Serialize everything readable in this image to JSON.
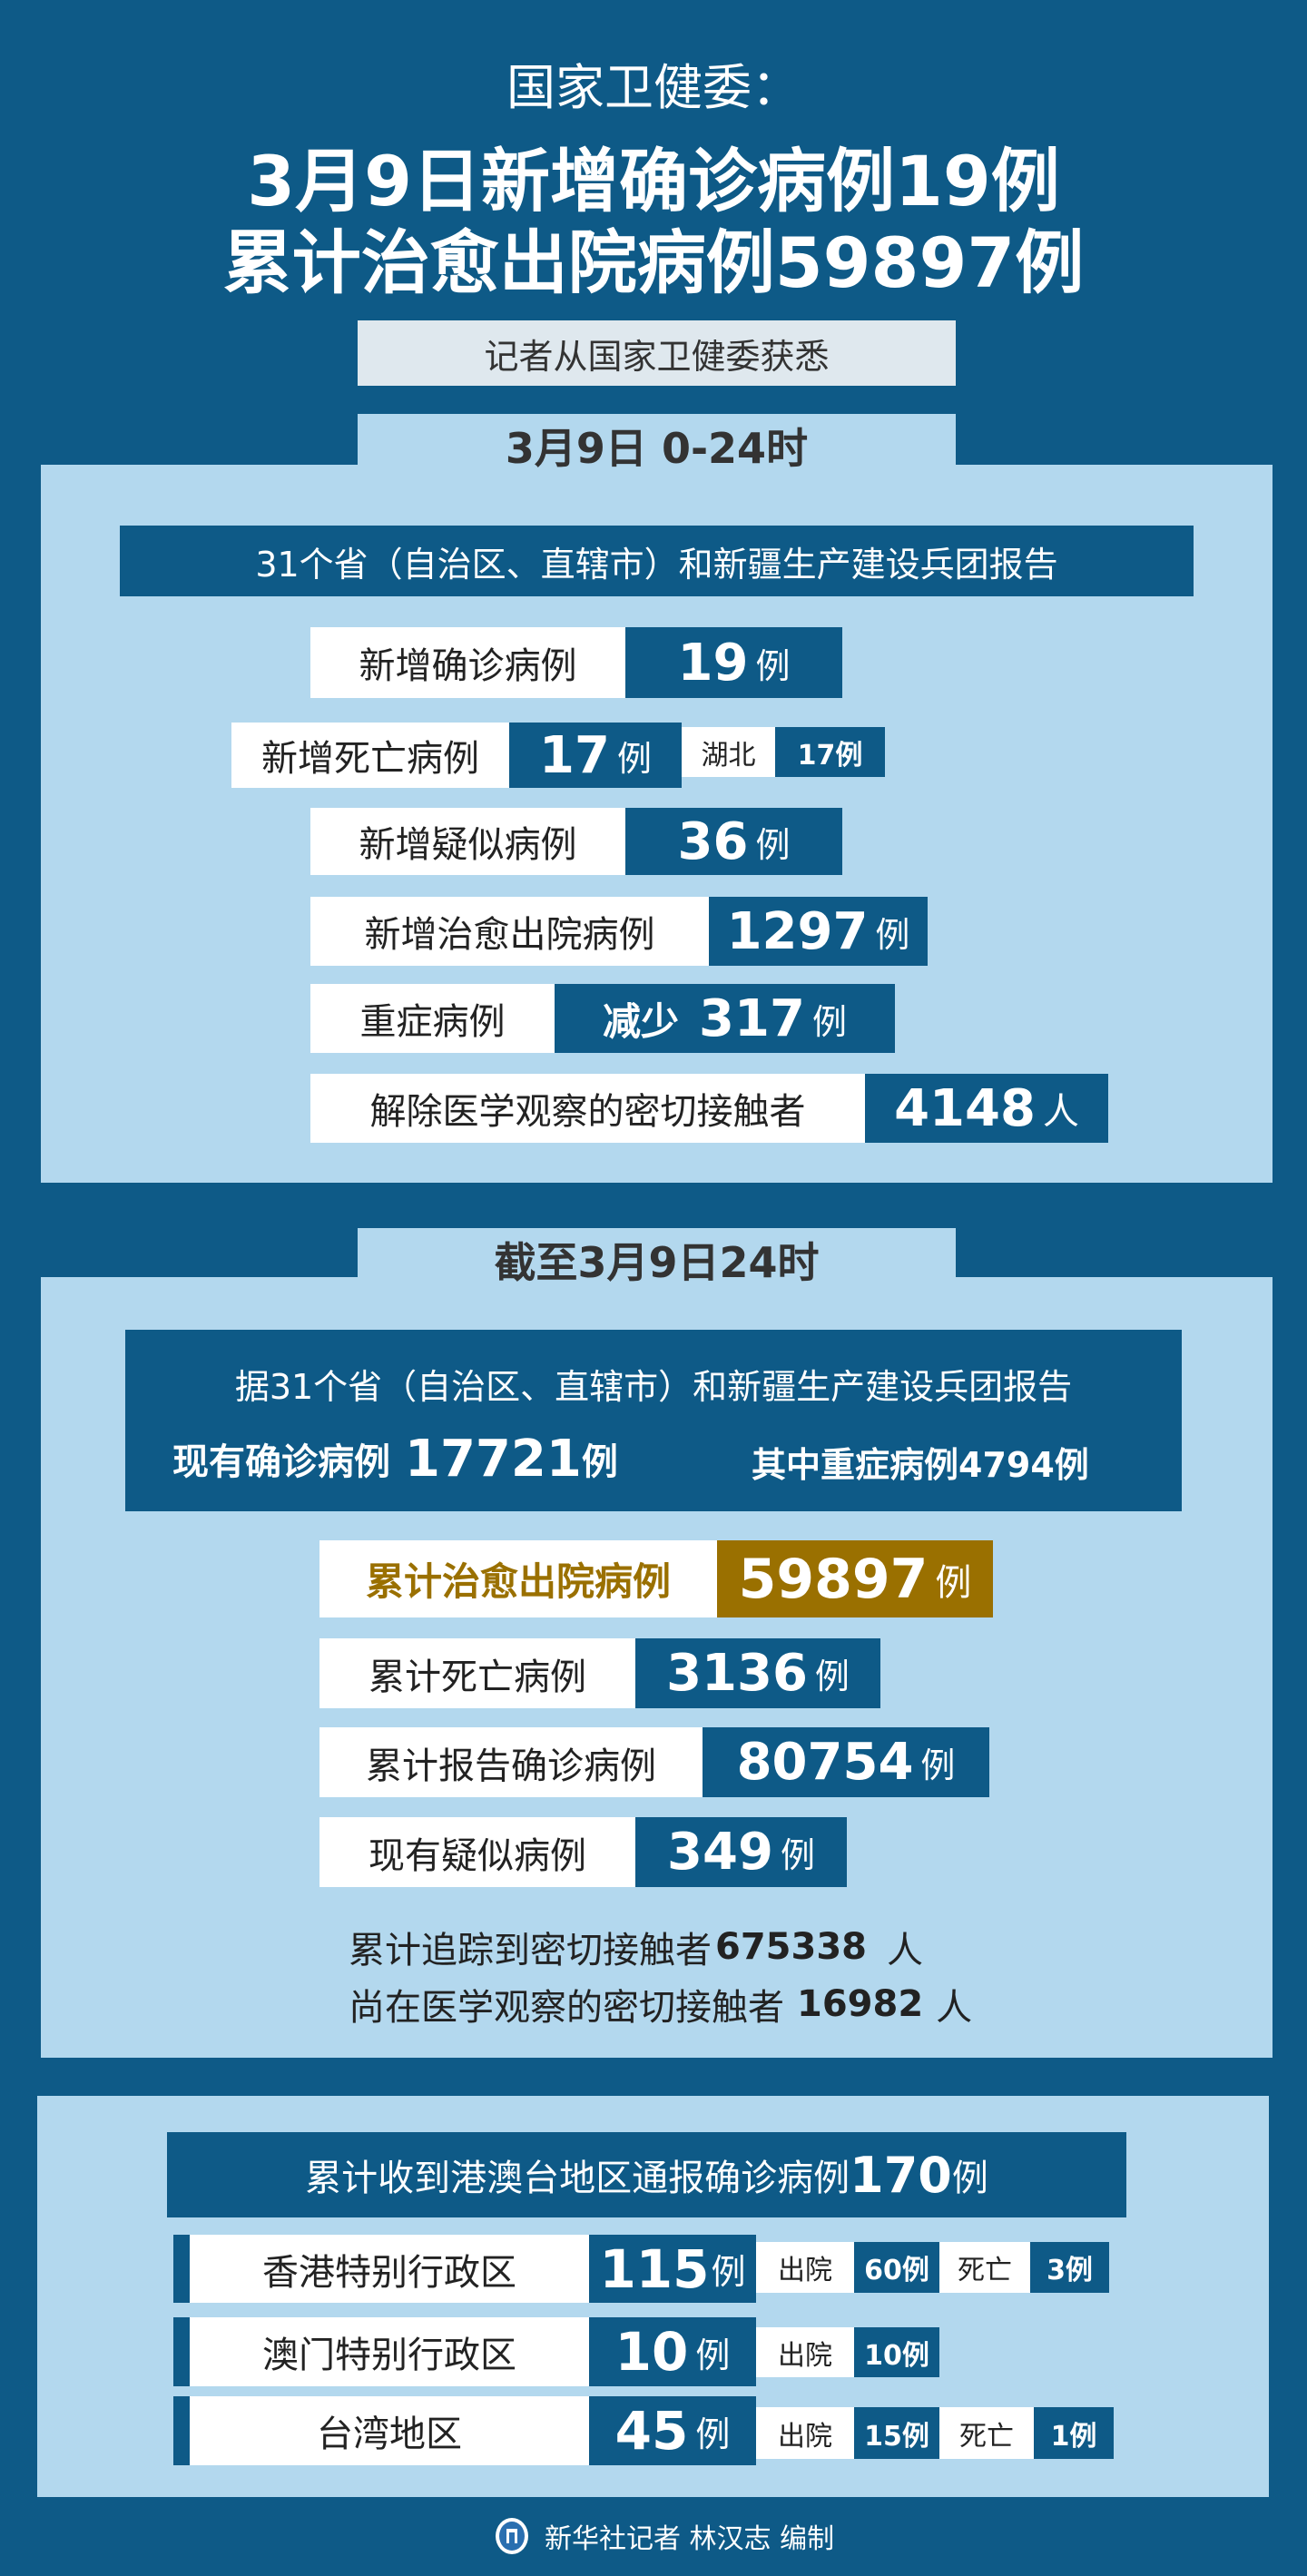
{
  "colors": {
    "background": "#0e5a87",
    "panel": "#b3d8ee",
    "highlight": "#9a7000",
    "subtitle_box": "#dfe8ee"
  },
  "header": {
    "source": "国家卫健委：",
    "headline1": "3月9日新增确诊病例19例",
    "headline2": "累计治愈出院病例59897例",
    "subtitle": "记者从国家卫健委获悉"
  },
  "daily": {
    "title": "3月9日  0-24时",
    "report": "31个省（自治区、直辖市）和新疆生产建设兵团报告",
    "rows": [
      {
        "label": "新增确诊病例",
        "value": "19",
        "unit": "例"
      },
      {
        "label": "新增死亡病例",
        "value": "17",
        "unit": "例",
        "sub_label": "湖北",
        "sub_value": "17例"
      },
      {
        "label": "新增疑似病例",
        "value": "36",
        "unit": "例"
      },
      {
        "label": "新增治愈出院病例",
        "value": "1297",
        "unit": "例"
      },
      {
        "label": "重症病例",
        "prefix": "减少",
        "value": "317",
        "unit": "例"
      },
      {
        "label": "解除医学观察的密切接触者",
        "value": "4148",
        "unit": "人"
      }
    ]
  },
  "cumulative": {
    "title": "截至3月9日24时",
    "report": "据31个省（自治区、直辖市）和新疆生产建设兵团报告",
    "current_label": "现有确诊病例",
    "current_value": "17721",
    "current_unit": "例",
    "severe": "其中重症病例4794例",
    "rows": [
      {
        "label": "累计治愈出院病例",
        "value": "59897",
        "unit": "例"
      },
      {
        "label": "累计死亡病例",
        "value": "3136",
        "unit": "例"
      },
      {
        "label": "累计报告确诊病例",
        "value": "80754",
        "unit": "例"
      },
      {
        "label": "现有疑似病例",
        "value": "349",
        "unit": "例"
      }
    ],
    "traced_label": "累计追踪到密切接触者",
    "traced_value": "675338",
    "traced_unit": "人",
    "observed_label": "尚在医学观察的密切接触者",
    "observed_value": "16982",
    "observed_unit": "人"
  },
  "regions": {
    "title": "累计收到港澳台地区通报确诊病例",
    "title_value": "170",
    "title_unit": "例",
    "discharged_label": "出院",
    "death_label": "死亡",
    "rows": [
      {
        "name": "香港特别行政区",
        "value": "115",
        "unit": "例",
        "discharged": "60例",
        "deaths": "3例"
      },
      {
        "name": "澳门特别行政区",
        "value": "10",
        "unit": "例",
        "discharged": "10例"
      },
      {
        "name": "台湾地区",
        "value": "45",
        "unit": "例",
        "discharged": "15例",
        "deaths": "1例"
      }
    ]
  },
  "footer": {
    "credit": "新华社记者 林汉志 编制",
    "logo_icon": "xinhua-logo-icon"
  }
}
